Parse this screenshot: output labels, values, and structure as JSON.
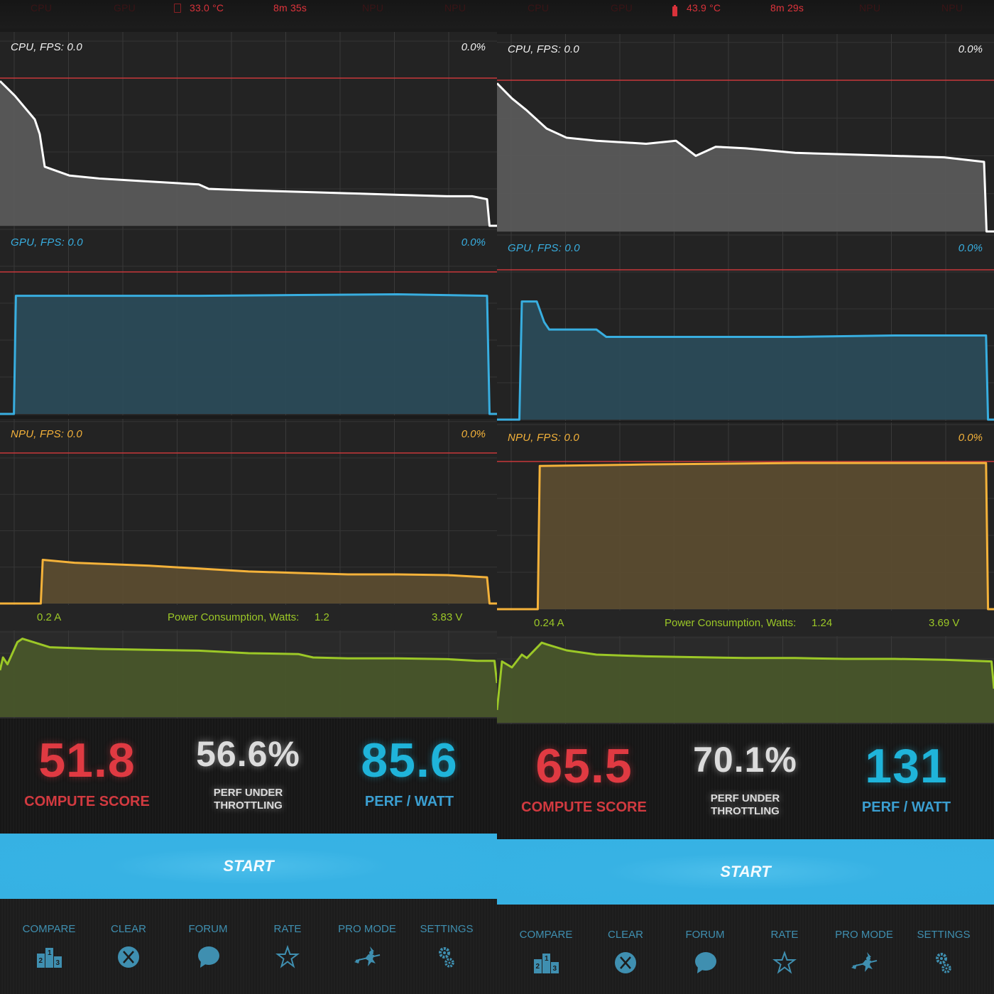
{
  "screens": [
    {
      "status_bar": {
        "items": [
          "CPU",
          "GPU",
          "NPU",
          "NPU"
        ],
        "temp_icon": "chip-icon",
        "temperature": "33.0 °C",
        "elapsed": "8m 35s"
      },
      "charts": {
        "cpu": {
          "title": "CPU, FPS:  0.0",
          "percent": "0.0%",
          "color": "#ffffff",
          "fill": "#5a5a5a"
        },
        "gpu": {
          "title": "GPU, FPS:  0.0",
          "percent": "0.0%",
          "color": "#38aee0",
          "fill": "#2b4b58"
        },
        "npu": {
          "title": "NPU, FPS:  0.0",
          "percent": "0.0%",
          "color": "#f4b23a",
          "fill": "#5b4c30"
        }
      },
      "power": {
        "current": "0.2 A",
        "label": "Power Consumption, Watts:",
        "watts": "1.2",
        "voltage": "3.83 V",
        "color": "#9cc827",
        "fill": "#48552a"
      },
      "scores": {
        "compute_value": "51.8",
        "compute_label": "COMPUTE SCORE",
        "throttle_value": "56.6%",
        "throttle_label_1": "PERF UNDER",
        "throttle_label_2": "THROTTLING",
        "perf_watt_value": "85.6",
        "perf_watt_label": "PERF / WATT"
      },
      "start_label": "START",
      "nav": [
        "COMPARE",
        "CLEAR",
        "FORUM",
        "RATE",
        "PRO MODE",
        "SETTINGS"
      ]
    },
    {
      "status_bar": {
        "items": [
          "CPU",
          "GPU",
          "NPU",
          "NPU"
        ],
        "temp_icon": "battery-icon",
        "temperature": "43.9 °C",
        "elapsed": "8m 29s"
      },
      "charts": {
        "cpu": {
          "title": "CPU, FPS:  0.0",
          "percent": "0.0%",
          "color": "#ffffff",
          "fill": "#5a5a5a"
        },
        "gpu": {
          "title": "GPU, FPS:  0.0",
          "percent": "0.0%",
          "color": "#38aee0",
          "fill": "#2b4b58"
        },
        "npu": {
          "title": "NPU, FPS:  0.0",
          "percent": "0.0%",
          "color": "#f4b23a",
          "fill": "#5b4c30"
        }
      },
      "power": {
        "current": "0.24 A",
        "label": "Power Consumption, Watts:",
        "watts": "1.24",
        "voltage": "3.69 V",
        "color": "#9cc827",
        "fill": "#48552a"
      },
      "scores": {
        "compute_value": "65.5",
        "compute_label": "COMPUTE SCORE",
        "throttle_value": "70.1%",
        "throttle_label_1": "PERF UNDER",
        "throttle_label_2": "THROTTLING",
        "perf_watt_value": "131",
        "perf_watt_label": "PERF / WATT"
      },
      "start_label": "START",
      "nav": [
        "COMPARE",
        "CLEAR",
        "FORUM",
        "RATE",
        "PRO MODE",
        "SETTINGS"
      ]
    }
  ],
  "chart_data": [
    {
      "type": "area",
      "title": "CPU load (left screen)",
      "x_pct": [
        0,
        3,
        7,
        8,
        9,
        14,
        20,
        30,
        40,
        42,
        50,
        60,
        70,
        80,
        90,
        95,
        98,
        98.5,
        100
      ],
      "y_pct": [
        98,
        88,
        72,
        62,
        40,
        34,
        32,
        30,
        28,
        25,
        24,
        23,
        22,
        21,
        20,
        20,
        18,
        0,
        0
      ]
    },
    {
      "type": "area",
      "title": "CPU load (right screen)",
      "x_pct": [
        0,
        3,
        6,
        10,
        14,
        20,
        30,
        36,
        40,
        44,
        50,
        60,
        70,
        80,
        90,
        98,
        98.5,
        100
      ],
      "y_pct": [
        98,
        88,
        80,
        68,
        62,
        60,
        58,
        60,
        50,
        56,
        55,
        52,
        51,
        50,
        49,
        46,
        0,
        0
      ]
    },
    {
      "type": "area",
      "title": "GPU load (left screen)",
      "x_pct": [
        0,
        2.8,
        3.2,
        20,
        40,
        60,
        80,
        98,
        98.5,
        100
      ],
      "y_pct": [
        0,
        0,
        80,
        80,
        80,
        80.5,
        81,
        80,
        0,
        0
      ]
    },
    {
      "type": "area",
      "title": "GPU load (right screen)",
      "x_pct": [
        0,
        4.5,
        5,
        8,
        9.5,
        10.5,
        20,
        22,
        24,
        40,
        60,
        80,
        98.4,
        98.8,
        100
      ],
      "y_pct": [
        0,
        0,
        80,
        80,
        66,
        61,
        61,
        56,
        56,
        56,
        56,
        57,
        57,
        0,
        0
      ]
    },
    {
      "type": "area",
      "title": "NPU load (left screen)",
      "x_pct": [
        0,
        8.2,
        8.6,
        15,
        30,
        40,
        50,
        60,
        70,
        80,
        90,
        98,
        98.5,
        100
      ],
      "y_pct": [
        0,
        0,
        30,
        28,
        26,
        24,
        22,
        21,
        20,
        20,
        19.5,
        18,
        0,
        0
      ]
    },
    {
      "type": "area",
      "title": "NPU load (right screen)",
      "x_pct": [
        0,
        8.2,
        8.6,
        30,
        60,
        98.4,
        98.8,
        100
      ],
      "y_pct": [
        0,
        0,
        97,
        98,
        99,
        99,
        0,
        0
      ]
    },
    {
      "type": "area",
      "title": "Power Consumption (left screen)",
      "x_pct": [
        0,
        0.6,
        1.5,
        3.5,
        4.5,
        10,
        20,
        30,
        40,
        50,
        60,
        63,
        70,
        80,
        90,
        96,
        99.5,
        100
      ],
      "y_pct": [
        55,
        70,
        62,
        88,
        92,
        82,
        80,
        79,
        78,
        75,
        74,
        70,
        69,
        69,
        68,
        66,
        66,
        40
      ],
      "current_A": 0.2,
      "power_W": 1.2,
      "voltage_V": 3.83
    },
    {
      "type": "area",
      "title": "Power Consumption (right screen)",
      "x_pct": [
        0,
        1,
        3,
        5,
        6,
        9,
        10,
        14,
        20,
        30,
        40,
        50,
        60,
        70,
        80,
        90,
        99.5,
        100
      ],
      "y_pct": [
        15,
        72,
        65,
        80,
        76,
        94,
        92,
        85,
        80,
        78,
        77,
        76,
        76,
        75,
        75,
        74,
        72,
        40
      ],
      "current_A": 0.24,
      "power_W": 1.24,
      "voltage_V": 3.69
    }
  ]
}
